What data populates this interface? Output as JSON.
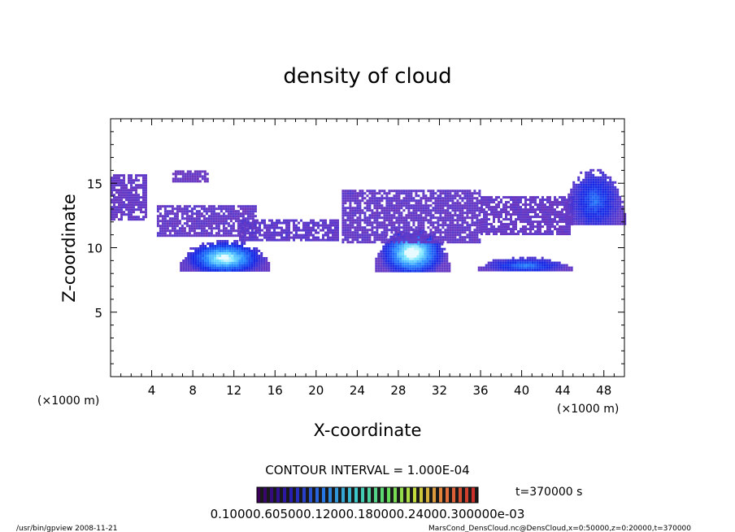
{
  "chart_data": {
    "type": "heatmap",
    "title": "density of cloud",
    "xlabel": "X-coordinate",
    "ylabel": "Z-coordinate",
    "x_unit": "(×1000 m)",
    "y_unit": "(×1000 m)",
    "xlim": [
      0,
      50
    ],
    "ylim": [
      0,
      20
    ],
    "x_ticks": [
      4,
      8,
      12,
      16,
      20,
      24,
      28,
      32,
      36,
      40,
      44,
      48
    ],
    "y_ticks": [
      5,
      10,
      15
    ],
    "contour_interval": "CONTOUR INTERVAL = 1.000E-04",
    "time_label": "t=370000 s",
    "colorbar_labels": "0.10000.605000.12000.180000.24000.300000e-03",
    "footer_left": "/usr/bin/gpview   2008-11-21",
    "footer_right": "MarsCond_DensCloud.nc@DensCloud,x=0:50000,z=0:20000,t=370000",
    "regions": [
      {
        "name": "upper-left-band",
        "x": [
          0,
          3.5
        ],
        "z": [
          12.2,
          15.7
        ],
        "level": 0.12
      },
      {
        "name": "upper-left-cap",
        "x": [
          6,
          9.5
        ],
        "z": [
          15.2,
          16.0
        ],
        "level": 0.1
      },
      {
        "name": "mid-left-band",
        "x": [
          4.5,
          14
        ],
        "z": [
          11.0,
          13.3
        ],
        "level": 0.13
      },
      {
        "name": "mid-band-16",
        "x": [
          12.5,
          22
        ],
        "z": [
          10.5,
          12.2
        ],
        "level": 0.15
      },
      {
        "name": "lower-left-dome",
        "x": [
          6.5,
          15.5
        ],
        "z": [
          8.2,
          10.6
        ],
        "level": 0.7
      },
      {
        "name": "lower-mid-dome",
        "x": [
          25.5,
          33
        ],
        "z": [
          8.2,
          11.5
        ],
        "level": 0.75
      },
      {
        "name": "upper-mid-band",
        "x": [
          22.5,
          36
        ],
        "z": [
          10.5,
          14.5
        ],
        "level": 0.13
      },
      {
        "name": "upper-right-band",
        "x": [
          36,
          45
        ],
        "z": [
          11.0,
          14.0
        ],
        "level": 0.12
      },
      {
        "name": "lower-right-band",
        "x": [
          35.5,
          45
        ],
        "z": [
          8.2,
          9.3
        ],
        "level": 0.4
      },
      {
        "name": "upper-right-blob",
        "x": [
          44,
          50
        ],
        "z": [
          11.8,
          16.1
        ],
        "level": 0.35
      }
    ]
  }
}
